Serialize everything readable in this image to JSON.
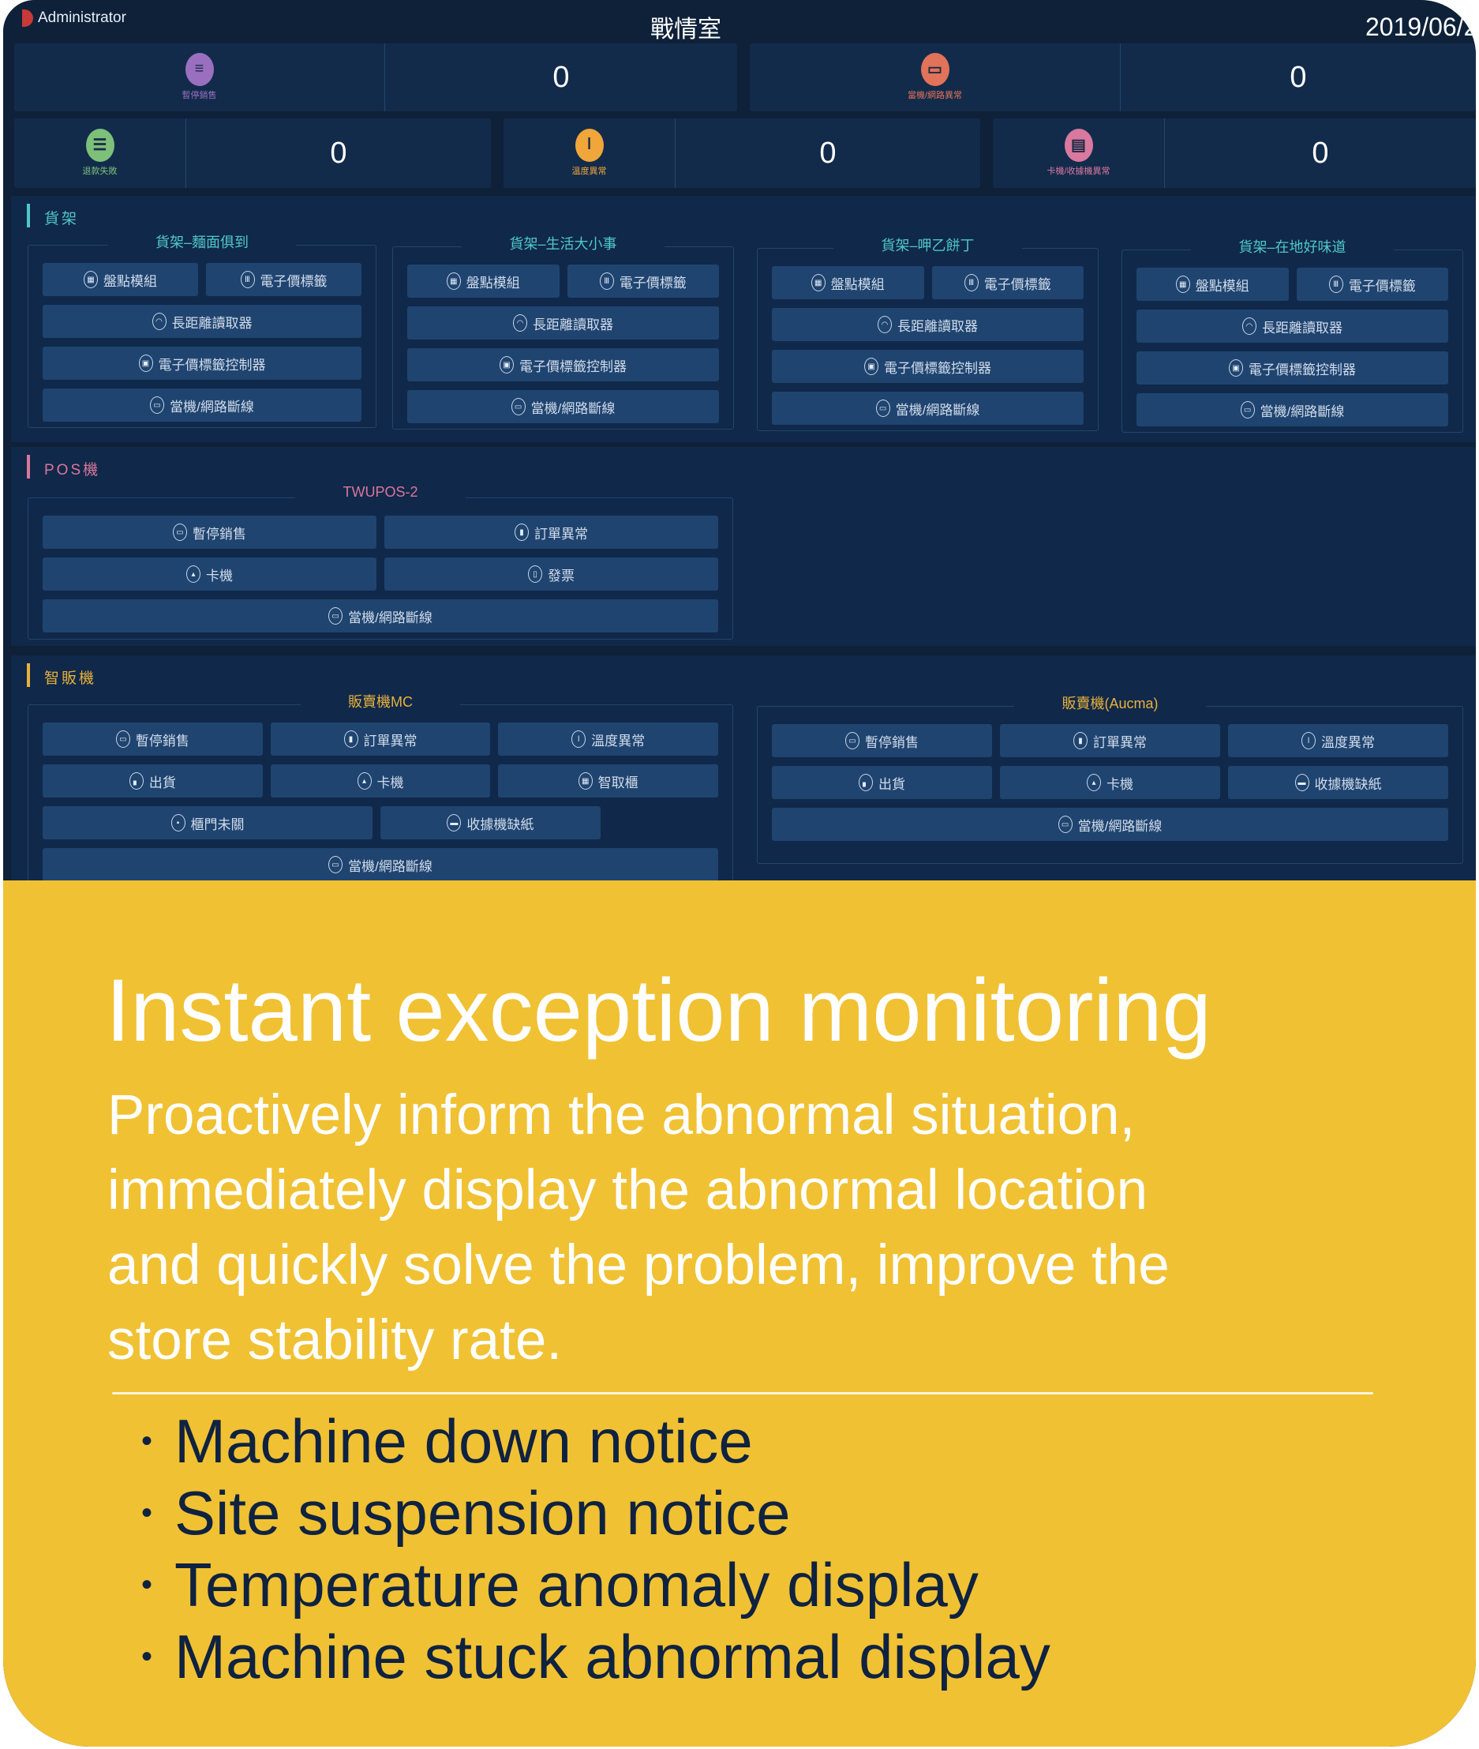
{
  "header": {
    "user": "Administrator",
    "title": "戰情室",
    "date": "2019/06/2"
  },
  "stats": [
    {
      "label": "暫停銷售",
      "value": "0",
      "icon": "barrier-icon",
      "color": "#9b6fc0"
    },
    {
      "label": "當機/網路異常",
      "value": "0",
      "icon": "monitor-icon",
      "color": "#e0735a"
    },
    {
      "label": "退款失敗",
      "value": "0",
      "icon": "clipboard-icon",
      "color": "#7cc07a"
    },
    {
      "label": "溫度異常",
      "value": "0",
      "icon": "thermometer-icon",
      "color": "#f0a63a"
    },
    {
      "label": "卡機/收據機異常",
      "value": "0",
      "icon": "card-reader-icon",
      "color": "#d9799f"
    }
  ],
  "colors": {
    "shelf": "#4fc7c9",
    "pos": "#d9779b",
    "vending": "#e8b13a",
    "promo_bg": "#f0c133"
  },
  "sections": [
    {
      "label": "貨架",
      "panels": [
        {
          "title": "貨架–麵面俱到",
          "rows": [
            [
              {
                "label": "盤點模組",
                "icon": "inventory-icon"
              },
              {
                "label": "電子價標籤",
                "icon": "tag-icon"
              }
            ],
            [
              {
                "label": "長距離讀取器",
                "icon": "wifi-icon"
              }
            ],
            [
              {
                "label": "電子價標籤控制器",
                "icon": "controller-icon"
              }
            ],
            [
              {
                "label": "當機/網路斷線",
                "icon": "monitor-icon"
              }
            ]
          ]
        },
        {
          "title": "貨架–生活大小事",
          "rows": [
            [
              {
                "label": "盤點模組",
                "icon": "inventory-icon"
              },
              {
                "label": "電子價標籤",
                "icon": "tag-icon"
              }
            ],
            [
              {
                "label": "長距離讀取器",
                "icon": "wifi-icon"
              }
            ],
            [
              {
                "label": "電子價標籤控制器",
                "icon": "controller-icon"
              }
            ],
            [
              {
                "label": "當機/網路斷線",
                "icon": "monitor-icon"
              }
            ]
          ]
        },
        {
          "title": "貨架–呷乙餅丁",
          "rows": [
            [
              {
                "label": "盤點模組",
                "icon": "inventory-icon"
              },
              {
                "label": "電子價標籤",
                "icon": "tag-icon"
              }
            ],
            [
              {
                "label": "長距離讀取器",
                "icon": "wifi-icon"
              }
            ],
            [
              {
                "label": "電子價標籤控制器",
                "icon": "controller-icon"
              }
            ],
            [
              {
                "label": "當機/網路斷線",
                "icon": "monitor-icon"
              }
            ]
          ]
        },
        {
          "title": "貨架–在地好味道",
          "rows": [
            [
              {
                "label": "盤點模組",
                "icon": "inventory-icon"
              },
              {
                "label": "電子價標籤",
                "icon": "tag-icon"
              }
            ],
            [
              {
                "label": "長距離讀取器",
                "icon": "wifi-icon"
              }
            ],
            [
              {
                "label": "電子價標籤控制器",
                "icon": "controller-icon"
              }
            ],
            [
              {
                "label": "當機/網路斷線",
                "icon": "monitor-icon"
              }
            ]
          ]
        }
      ]
    },
    {
      "label": "POS機",
      "panels": [
        {
          "title": "TWUPOS-2",
          "rows": [
            [
              {
                "label": "暫停銷售",
                "icon": "monitor-icon"
              },
              {
                "label": "訂單異常",
                "icon": "order-icon"
              }
            ],
            [
              {
                "label": "卡機",
                "icon": "jam-icon"
              },
              {
                "label": "發票",
                "icon": "invoice-icon"
              }
            ],
            [
              {
                "label": "當機/網路斷線",
                "icon": "monitor-icon"
              }
            ]
          ]
        }
      ]
    },
    {
      "label": "智販機",
      "panels": [
        {
          "title": "販賣機MC",
          "rows": [
            [
              {
                "label": "暫停銷售",
                "icon": "monitor-icon"
              },
              {
                "label": "訂單異常",
                "icon": "order-icon"
              },
              {
                "label": "溫度異常",
                "icon": "thermometer-icon"
              }
            ],
            [
              {
                "label": "出貨",
                "icon": "shipping-icon"
              },
              {
                "label": "卡機",
                "icon": "jam-icon"
              },
              {
                "label": "智取櫃",
                "icon": "locker-icon"
              }
            ],
            [
              {
                "label": "櫃門未關",
                "icon": "door-icon"
              },
              {
                "label": "收據機缺紙",
                "icon": "printer-icon"
              }
            ],
            [
              {
                "label": "當機/網路斷線",
                "icon": "monitor-icon"
              }
            ]
          ]
        },
        {
          "title": "販賣機(Aucma)",
          "rows": [
            [
              {
                "label": "暫停銷售",
                "icon": "monitor-icon"
              },
              {
                "label": "訂單異常",
                "icon": "order-icon"
              },
              {
                "label": "溫度異常",
                "icon": "thermometer-icon"
              }
            ],
            [
              {
                "label": "出貨",
                "icon": "shipping-icon"
              },
              {
                "label": "卡機",
                "icon": "jam-icon"
              },
              {
                "label": "收據機缺紙",
                "icon": "printer-icon"
              }
            ],
            [
              {
                "label": "當機/網路斷線",
                "icon": "monitor-icon"
              }
            ]
          ]
        }
      ]
    }
  ],
  "promo": {
    "title": "Instant exception monitoring",
    "lines": [
      "Proactively inform the abnormal situation,",
      "immediately display the abnormal location",
      "and quickly solve the problem, improve the",
      "store stability rate."
    ],
    "bullets": [
      "Machine down notice",
      "Site suspension notice",
      "Temperature anomaly display",
      "Machine stuck abnormal display"
    ]
  }
}
